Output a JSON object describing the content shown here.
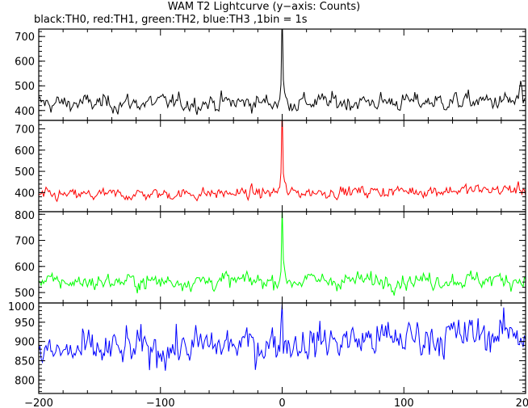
{
  "header": {
    "title": "WAM T2 Lightcurve (y−axis: Counts)",
    "subtitle": "black:TH0, red:TH1, green:TH2, blue:TH3 ,1bin = 1s"
  },
  "chart_data": [
    {
      "type": "line",
      "series": [
        {
          "name": "TH0",
          "color": "#000000",
          "baseline": 428,
          "noise": 28,
          "trend": [
            0,
            10
          ],
          "peak": {
            "x": 0,
            "value": 800
          },
          "end_bump": {
            "x": 196,
            "value": 520
          }
        }
      ],
      "x": {
        "range": [
          -200,
          200
        ]
      },
      "ylim": [
        360,
        730
      ],
      "yticks": [
        400,
        500,
        600,
        700
      ],
      "ytick_labels": [
        "400",
        "500",
        "600",
        "700"
      ]
    },
    {
      "type": "line",
      "series": [
        {
          "name": "TH1",
          "color": "#ff0000",
          "baseline": 385,
          "noise": 22,
          "trend": [
            0,
            30
          ],
          "peak": {
            "x": 0,
            "value": 800
          }
        }
      ],
      "x": {
        "range": [
          -200,
          200
        ]
      },
      "ylim": [
        310,
        740
      ],
      "yticks": [
        400,
        500,
        600,
        700
      ],
      "ytick_labels": [
        "400",
        "500",
        "600",
        "700"
      ]
    },
    {
      "type": "line",
      "series": [
        {
          "name": "TH2",
          "color": "#00ff00",
          "baseline": 540,
          "noise": 25,
          "trend": [
            0,
            10
          ],
          "peak": {
            "x": 0,
            "value": 830
          }
        }
      ],
      "x": {
        "range": [
          -200,
          200
        ]
      },
      "ylim": [
        460,
        810
      ],
      "yticks": [
        500,
        600,
        700,
        800
      ],
      "ytick_labels": [
        "500",
        "600",
        "700",
        "800"
      ]
    },
    {
      "type": "line",
      "series": [
        {
          "name": "TH3",
          "color": "#0000ff",
          "baseline": 868,
          "noise": 38,
          "trend": [
            0,
            55
          ],
          "peak": {
            "x": 0,
            "value": 1000
          }
        }
      ],
      "x": {
        "range": [
          -200,
          200
        ]
      },
      "ylim": [
        765,
        1000
      ],
      "yticks": [
        800,
        850,
        900,
        950,
        1000
      ],
      "ytick_labels": [
        "800",
        "850",
        "900",
        "950",
        "1000"
      ],
      "xticks": [
        -200,
        -100,
        0,
        100,
        200
      ],
      "xtick_labels": [
        "−200",
        "−100",
        "0",
        "100",
        "200"
      ]
    }
  ]
}
